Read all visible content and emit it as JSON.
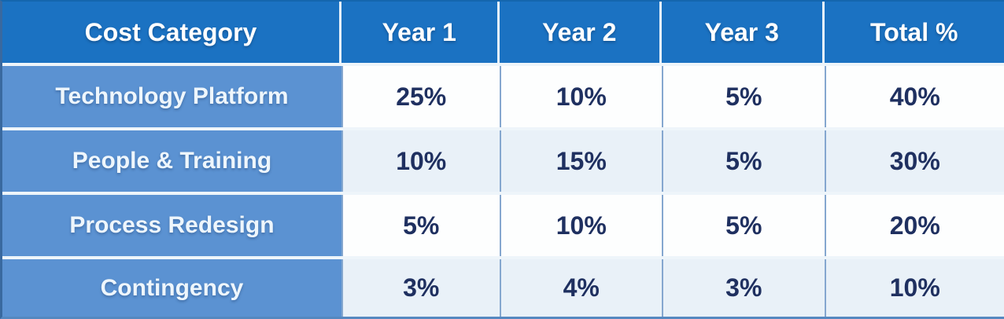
{
  "chart_data": {
    "type": "table",
    "title": "",
    "columns": [
      "Cost Category",
      "Year 1",
      "Year 2",
      "Year 3",
      "Total %"
    ],
    "rows": [
      [
        "Technology Platform",
        "25%",
        "10%",
        "5%",
        "40%"
      ],
      [
        "People & Training",
        "10%",
        "15%",
        "5%",
        "30%"
      ],
      [
        "Process Redesign",
        "5%",
        "10%",
        "5%",
        "20%"
      ],
      [
        "Contingency",
        "3%",
        "4%",
        "3%",
        "10%"
      ]
    ]
  },
  "colors": {
    "header_bg": "#1b72c2",
    "header_text": "#ffffff",
    "category_bg": "#5b92d2",
    "category_text": "#eef6fc",
    "row_light_bg": "#fdfefe",
    "row_tinted_bg": "#e9f1f8",
    "value_text": "#1f3060",
    "divider": "#85a7cf",
    "separator_bg": "#eef5fa",
    "edge_left": "#39699f",
    "edge_bottom": "#5588c0",
    "edge_top": "#1566ae"
  }
}
